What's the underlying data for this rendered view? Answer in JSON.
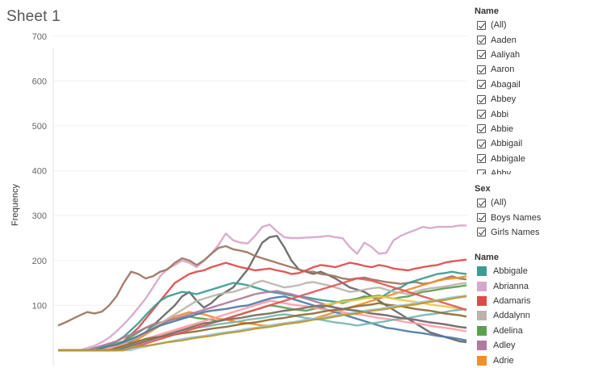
{
  "sheet": {
    "title": "Sheet 1"
  },
  "filters": {
    "name": {
      "title": "Name",
      "items": [
        "(All)",
        "Aaden",
        "Aaliyah",
        "Aaron",
        "Abagail",
        "Abbey",
        "Abbi",
        "Abbie",
        "Abbigail",
        "Abbigale",
        "Abby"
      ]
    },
    "sex": {
      "title": "Sex",
      "items": [
        "(All)",
        "Boys Names",
        "Girls Names"
      ]
    }
  },
  "legend": {
    "title": "Name",
    "items": [
      {
        "label": "Abbigale",
        "color": "#3e9b93"
      },
      {
        "label": "Abrianna",
        "color": "#d7a6c9"
      },
      {
        "label": "Adamaris",
        "color": "#df4a4a"
      },
      {
        "label": "Addalynn",
        "color": "#bdb3ad"
      },
      {
        "label": "Adelina",
        "color": "#59a14f"
      },
      {
        "label": "Adley",
        "color": "#b07aa1"
      },
      {
        "label": "Adrie",
        "color": "#f28e2b"
      }
    ]
  },
  "chart_data": {
    "type": "line",
    "ylabel": "Frequency",
    "ylim": [
      0,
      760
    ],
    "yticks": [
      "100",
      "200",
      "300",
      "400",
      "500",
      "600",
      "700"
    ],
    "x": [
      0,
      1,
      2,
      3,
      4,
      5,
      6,
      7,
      8,
      9,
      10,
      11,
      12,
      13,
      14,
      15,
      16,
      17,
      18,
      19,
      20,
      21,
      22,
      23,
      24,
      25,
      26,
      27,
      28,
      29,
      30,
      31,
      32,
      33,
      34,
      35,
      36,
      37,
      38,
      39,
      40,
      41,
      42,
      43,
      44,
      45,
      46,
      47,
      48,
      49,
      50,
      51,
      52,
      53,
      54,
      55,
      56
    ],
    "series": [
      {
        "color": "#d7a6c9",
        "values": [
          0,
          0,
          0,
          0,
          5,
          10,
          18,
          28,
          42,
          58,
          75,
          95,
          115,
          140,
          165,
          182,
          190,
          200,
          195,
          185,
          200,
          215,
          235,
          260,
          245,
          240,
          238,
          255,
          275,
          280,
          265,
          252,
          250,
          250,
          251,
          252,
          253,
          255,
          252,
          250,
          230,
          215,
          240,
          230,
          215,
          217,
          245,
          255,
          262,
          268,
          275,
          272,
          275,
          275,
          275,
          278,
          278
        ]
      },
      {
        "color": "#666666",
        "values": [
          0,
          0,
          0,
          0,
          0,
          0,
          0,
          0,
          5,
          10,
          20,
          30,
          40,
          55,
          70,
          85,
          100,
          120,
          130,
          110,
          95,
          105,
          120,
          130,
          140,
          160,
          180,
          210,
          240,
          252,
          255,
          230,
          200,
          180,
          175,
          170,
          175,
          168,
          160,
          150,
          140,
          135,
          130,
          120,
          110,
          100,
          90,
          80,
          70,
          60,
          50,
          40,
          35,
          30,
          25,
          20,
          18
        ]
      },
      {
        "color": "#9c755f",
        "values": [
          55,
          62,
          70,
          78,
          85,
          82,
          86,
          100,
          120,
          150,
          175,
          170,
          160,
          165,
          175,
          180,
          195,
          205,
          200,
          190,
          200,
          215,
          228,
          232,
          225,
          222,
          218,
          210,
          205,
          200,
          195,
          190,
          185,
          180,
          175,
          175,
          170,
          168,
          165,
          160,
          158,
          160,
          162,
          158,
          155,
          152,
          150,
          148,
          150,
          152,
          148,
          150,
          155,
          160,
          165,
          160,
          158
        ]
      },
      {
        "color": "#df4a4a",
        "values": [
          0,
          0,
          0,
          0,
          0,
          0,
          0,
          5,
          10,
          20,
          35,
          50,
          70,
          90,
          110,
          130,
          150,
          160,
          170,
          175,
          178,
          185,
          190,
          195,
          190,
          185,
          182,
          178,
          180,
          182,
          178,
          175,
          170,
          172,
          178,
          185,
          190,
          188,
          185,
          190,
          195,
          192,
          188,
          185,
          190,
          187,
          182,
          180,
          178,
          182,
          185,
          188,
          190,
          195,
          198,
          200,
          202
        ]
      },
      {
        "color": "#3e9b93",
        "values": [
          0,
          0,
          0,
          0,
          0,
          5,
          8,
          12,
          20,
          30,
          45,
          60,
          78,
          95,
          110,
          120,
          125,
          130,
          128,
          125,
          130,
          135,
          140,
          145,
          150,
          148,
          145,
          140,
          135,
          130,
          128,
          125,
          122,
          120,
          118,
          115,
          112,
          110,
          108,
          105,
          110,
          115,
          120,
          118,
          115,
          125,
          135,
          140,
          150,
          155,
          160,
          165,
          170,
          172,
          175,
          172,
          170
        ]
      },
      {
        "color": "#f28e2b",
        "values": [
          0,
          0,
          0,
          0,
          0,
          0,
          0,
          0,
          5,
          10,
          15,
          25,
          35,
          45,
          55,
          65,
          75,
          80,
          85,
          82,
          80,
          75,
          70,
          68,
          65,
          62,
          60,
          58,
          55,
          55,
          58,
          60,
          62,
          65,
          68,
          70,
          75,
          80,
          85,
          90,
          95,
          100,
          105,
          110,
          115,
          120,
          125,
          130,
          135,
          140,
          145,
          150,
          155,
          158,
          160,
          162,
          165
        ]
      },
      {
        "color": "#59a14f",
        "values": [
          0,
          0,
          0,
          0,
          0,
          0,
          5,
          10,
          15,
          20,
          30,
          40,
          50,
          55,
          60,
          65,
          70,
          72,
          75,
          72,
          70,
          68,
          65,
          70,
          75,
          80,
          85,
          90,
          95,
          100,
          98,
          95,
          92,
          90,
          88,
          92,
          95,
          100,
          105,
          110,
          112,
          115,
          118,
          120,
          122,
          118,
          115,
          118,
          120,
          125,
          130,
          132,
          135,
          138,
          140,
          142,
          145
        ]
      },
      {
        "color": "#b07aa1",
        "values": [
          0,
          0,
          0,
          0,
          0,
          5,
          10,
          15,
          20,
          28,
          35,
          42,
          50,
          58,
          62,
          65,
          70,
          75,
          80,
          85,
          90,
          95,
          100,
          105,
          110,
          115,
          120,
          125,
          128,
          130,
          132,
          128,
          125,
          120,
          115,
          110,
          105,
          100,
          95,
          92,
          90,
          88,
          85,
          82,
          80,
          78,
          75,
          72,
          70,
          68,
          65,
          62,
          60,
          58,
          55,
          52,
          50
        ]
      },
      {
        "color": "#bdb3ad",
        "values": [
          0,
          0,
          0,
          0,
          0,
          0,
          0,
          5,
          10,
          15,
          22,
          30,
          40,
          50,
          60,
          70,
          80,
          90,
          100,
          110,
          115,
          120,
          125,
          128,
          130,
          135,
          140,
          150,
          155,
          150,
          145,
          140,
          142,
          145,
          150,
          152,
          148,
          145,
          140,
          135,
          130,
          132,
          135,
          138,
          140,
          135,
          130,
          128,
          125,
          130,
          135,
          138,
          140,
          142,
          145,
          148,
          150
        ]
      },
      {
        "color": "#4e79a7",
        "values": [
          0,
          0,
          0,
          0,
          0,
          0,
          5,
          8,
          12,
          18,
          25,
          32,
          40,
          48,
          55,
          60,
          65,
          70,
          75,
          80,
          85,
          88,
          90,
          92,
          95,
          98,
          100,
          105,
          110,
          115,
          118,
          120,
          115,
          110,
          105,
          100,
          95,
          90,
          85,
          80,
          75,
          70,
          65,
          60,
          55,
          50,
          48,
          45,
          42,
          40,
          38,
          35,
          32,
          30,
          28,
          25,
          22
        ]
      },
      {
        "color": "#edc948",
        "values": [
          0,
          0,
          0,
          0,
          0,
          0,
          0,
          0,
          5,
          10,
          15,
          20,
          25,
          30,
          35,
          40,
          45,
          50,
          55,
          58,
          60,
          62,
          65,
          68,
          70,
          72,
          75,
          78,
          80,
          82,
          85,
          88,
          90,
          92,
          95,
          98,
          100,
          102,
          105,
          108,
          110,
          112,
          115,
          118,
          120,
          118,
          115,
          112,
          110,
          108,
          105,
          102,
          100,
          98,
          95,
          92,
          90
        ]
      },
      {
        "color": "#ff9da7",
        "values": [
          0,
          0,
          0,
          0,
          0,
          0,
          0,
          5,
          8,
          12,
          15,
          20,
          25,
          30,
          35,
          40,
          45,
          50,
          55,
          60,
          65,
          70,
          75,
          80,
          85,
          90,
          95,
          100,
          105,
          110,
          108,
          105,
          102,
          100,
          98,
          95,
          92,
          90,
          88,
          85,
          82,
          80,
          78,
          75,
          72,
          70,
          68,
          65,
          62,
          60,
          58,
          55,
          52,
          50,
          48,
          45,
          42
        ]
      },
      {
        "color": "#76b7b2",
        "values": [
          0,
          0,
          0,
          0,
          0,
          0,
          0,
          0,
          0,
          5,
          10,
          15,
          20,
          25,
          30,
          35,
          40,
          45,
          48,
          50,
          52,
          55,
          58,
          60,
          62,
          65,
          68,
          70,
          72,
          75,
          78,
          80,
          78,
          75,
          72,
          70,
          68,
          65,
          62,
          60,
          58,
          55,
          58,
          60,
          62,
          65,
          68,
          70,
          72,
          75,
          78,
          80,
          82,
          85,
          88,
          90,
          92
        ]
      },
      {
        "color": "#8c6d31",
        "values": [
          0,
          0,
          0,
          0,
          0,
          0,
          0,
          0,
          5,
          10,
          15,
          20,
          25,
          28,
          30,
          32,
          35,
          38,
          40,
          42,
          45,
          48,
          50,
          52,
          55,
          58,
          60,
          62,
          65,
          68,
          70,
          72,
          75,
          78,
          80,
          82,
          85,
          88,
          90,
          92,
          95,
          98,
          100,
          102,
          105,
          102,
          100,
          98,
          95,
          92,
          90,
          88,
          85,
          82,
          80,
          78,
          75
        ]
      },
      {
        "color": "#e45756",
        "values": [
          0,
          0,
          0,
          0,
          0,
          0,
          0,
          0,
          0,
          0,
          5,
          10,
          15,
          20,
          25,
          30,
          35,
          40,
          45,
          50,
          55,
          60,
          65,
          70,
          75,
          80,
          85,
          90,
          95,
          100,
          105,
          110,
          115,
          120,
          125,
          130,
          135,
          140,
          145,
          150,
          155,
          160,
          158,
          155,
          150,
          145,
          140,
          135,
          130,
          125,
          120,
          115,
          110,
          105,
          100,
          95,
          90
        ]
      },
      {
        "color": "#a0cbe8",
        "values": [
          0,
          0,
          0,
          0,
          0,
          0,
          0,
          0,
          0,
          0,
          0,
          5,
          8,
          12,
          15,
          18,
          22,
          25,
          28,
          30,
          32,
          35,
          38,
          40,
          42,
          45,
          48,
          50,
          52,
          55,
          58,
          60,
          62,
          65,
          68,
          70,
          72,
          75,
          78,
          80,
          82,
          85,
          88,
          90,
          92,
          95,
          98,
          100,
          102,
          105,
          108,
          110,
          112,
          115,
          118,
          120,
          122
        ]
      },
      {
        "color": "#79706e",
        "values": [
          0,
          0,
          0,
          0,
          0,
          0,
          0,
          0,
          0,
          5,
          10,
          15,
          20,
          25,
          30,
          35,
          40,
          45,
          50,
          55,
          60,
          62,
          65,
          68,
          70,
          72,
          75,
          78,
          80,
          82,
          85,
          88,
          90,
          92,
          95,
          98,
          100,
          98,
          95,
          92,
          90,
          88,
          85,
          82,
          80,
          78,
          75,
          72,
          70,
          68,
          65,
          62,
          60,
          58,
          55,
          52,
          50
        ]
      },
      {
        "color": "#b6992d",
        "values": [
          0,
          0,
          0,
          0,
          0,
          0,
          0,
          0,
          0,
          0,
          5,
          8,
          10,
          12,
          15,
          18,
          20,
          22,
          25,
          28,
          30,
          32,
          35,
          38,
          40,
          42,
          45,
          48,
          50,
          52,
          55,
          58,
          60,
          62,
          65,
          68,
          70,
          72,
          75,
          78,
          80,
          82,
          85,
          88,
          90,
          92,
          95,
          98,
          100,
          102,
          105,
          108,
          110,
          112,
          115,
          118,
          120
        ]
      }
    ]
  }
}
